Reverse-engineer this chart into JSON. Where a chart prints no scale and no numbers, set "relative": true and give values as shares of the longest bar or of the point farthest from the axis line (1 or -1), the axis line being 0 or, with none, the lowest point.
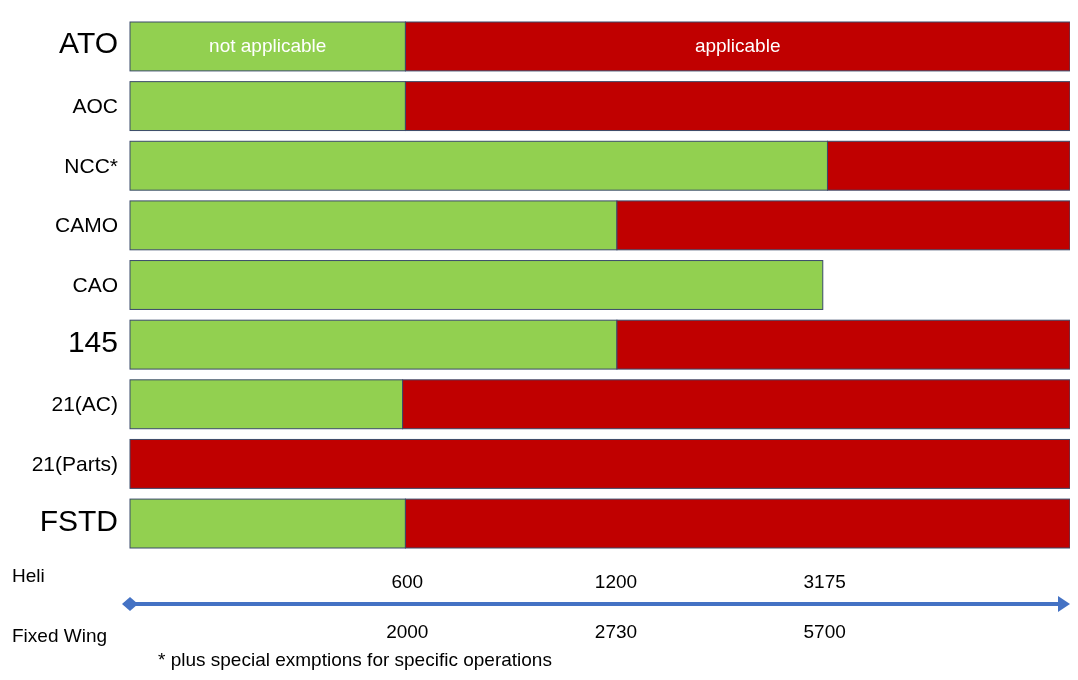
{
  "chart_data": {
    "type": "bar",
    "orientation": "horizontal",
    "stacked": true,
    "relative": true,
    "categories": [
      "ATO",
      "AOC",
      "NCC*",
      "CAMO",
      "CAO",
      "145",
      "21(AC)",
      "21(Parts)",
      "FSTD"
    ],
    "series": [
      {
        "name": "not applicable",
        "color": "#92d050",
        "values": [
          0.293,
          0.293,
          0.742,
          0.518,
          0.737,
          0.518,
          0.29,
          0,
          0.293
        ]
      },
      {
        "name": "applicable",
        "color": "#c00000",
        "values": [
          0.707,
          0.707,
          0.258,
          0.482,
          0,
          0.482,
          0.71,
          1,
          0.707
        ]
      }
    ],
    "xlabel": "Heli",
    "x2label": "Fixed Wing",
    "annotations": [
      "600",
      "1200",
      "3175",
      "2000",
      "2730",
      "5700",
      "* plus special exmptions for specific operations"
    ]
  }
}
